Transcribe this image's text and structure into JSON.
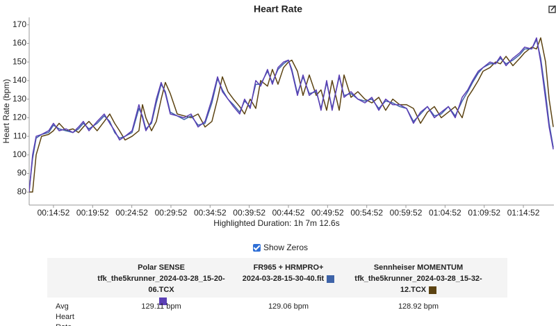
{
  "chart_data": {
    "type": "line",
    "title": "Heart Rate",
    "ylabel": "Heart Rate (bpm)",
    "xlabel": "Highlighted Duration: 1h 7m 12.6s",
    "x": [
      706,
      732,
      759,
      801,
      855,
      892,
      935,
      988,
      1041,
      1084,
      1121,
      1164,
      1227,
      1281,
      1323,
      1361,
      1398,
      1440,
      1494,
      1547,
      1574,
      1600,
      1643,
      1680,
      1717,
      1749,
      1787,
      1840,
      1893,
      1946,
      2000,
      2053,
      2106,
      2149,
      2186,
      2229,
      2271,
      2319,
      2356,
      2399,
      2442,
      2479,
      2532,
      2569,
      2612,
      2655,
      2692,
      2718,
      2761,
      2804,
      2852,
      2905,
      2942,
      2985,
      3027,
      3081,
      3118,
      3171,
      3224,
      3278,
      3331,
      3384,
      3437,
      3491,
      3544,
      3597,
      3650,
      3704,
      3757,
      3810,
      3863,
      3917,
      3970,
      4023,
      4066,
      4103,
      4146,
      4183,
      4236,
      4279,
      4316,
      4359,
      4412,
      4465,
      4502,
      4556,
      4593,
      4625,
      4662,
      4689,
      4721
    ],
    "series": [
      {
        "name": "Polar SENSE",
        "color": "#5b3fb5",
        "values": [
          80,
          100,
          110,
          111,
          113,
          117,
          113,
          114,
          112,
          115,
          118,
          113,
          118,
          122,
          117,
          113,
          108,
          110,
          113,
          127,
          120,
          113,
          118,
          130,
          139,
          133,
          122,
          121,
          120,
          122,
          115,
          118,
          130,
          142,
          134,
          130,
          126,
          122,
          130,
          125,
          140,
          137,
          146,
          138,
          147,
          150,
          151,
          145,
          132,
          143,
          132,
          135,
          124,
          140,
          124,
          143,
          131,
          134,
          130,
          128,
          131,
          124,
          130,
          127,
          127,
          125,
          117,
          123,
          126,
          120,
          123,
          126,
          120,
          131,
          135,
          140,
          145,
          147,
          150,
          149,
          153,
          148,
          152,
          155,
          158,
          157,
          163,
          150,
          130,
          115,
          103
        ]
      },
      {
        "name": "FR965 + HRMPRO+",
        "color": "#3e63a8",
        "values": [
          81,
          98,
          109,
          111,
          112,
          116,
          114,
          113,
          112,
          114,
          117,
          114,
          117,
          121,
          118,
          112,
          109,
          110,
          112,
          125,
          121,
          114,
          117,
          128,
          138,
          134,
          123,
          121,
          119,
          121,
          116,
          117,
          128,
          141,
          135,
          130,
          127,
          123,
          129,
          126,
          138,
          138,
          145,
          139,
          146,
          149,
          151,
          146,
          133,
          142,
          133,
          134,
          125,
          139,
          125,
          142,
          132,
          133,
          130,
          129,
          130,
          125,
          129,
          128,
          126,
          125,
          118,
          122,
          126,
          121,
          122,
          126,
          121,
          129,
          134,
          139,
          144,
          147,
          149,
          149,
          152,
          149,
          151,
          154,
          157,
          157,
          162,
          152,
          133,
          117,
          104
        ]
      },
      {
        "name": "Sennheiser MOMENTUM",
        "color": "#5c4312",
        "values": [
          80,
          80,
          100,
          110,
          111,
          113,
          117,
          113,
          114,
          112,
          115,
          118,
          113,
          118,
          122,
          117,
          113,
          108,
          110,
          113,
          127,
          120,
          113,
          118,
          130,
          139,
          133,
          122,
          121,
          120,
          122,
          115,
          118,
          130,
          142,
          134,
          130,
          126,
          122,
          130,
          125,
          140,
          137,
          146,
          138,
          147,
          150,
          151,
          145,
          132,
          143,
          132,
          135,
          124,
          140,
          124,
          143,
          131,
          134,
          130,
          128,
          131,
          124,
          130,
          127,
          127,
          125,
          117,
          123,
          126,
          120,
          123,
          126,
          120,
          131,
          135,
          140,
          145,
          147,
          150,
          149,
          153,
          148,
          152,
          155,
          158,
          157,
          163,
          150,
          130,
          115
        ]
      }
    ],
    "xlim": [
      706,
      4726
    ],
    "xticks": [
      {
        "value": 892,
        "label": "00:14:52"
      },
      {
        "value": 1192,
        "label": "00:19:52"
      },
      {
        "value": 1492,
        "label": "00:24:52"
      },
      {
        "value": 1792,
        "label": "00:29:52"
      },
      {
        "value": 2092,
        "label": "00:34:52"
      },
      {
        "value": 2392,
        "label": "00:39:52"
      },
      {
        "value": 2692,
        "label": "00:44:52"
      },
      {
        "value": 2992,
        "label": "00:49:52"
      },
      {
        "value": 3292,
        "label": "00:54:52"
      },
      {
        "value": 3592,
        "label": "00:59:52"
      },
      {
        "value": 3892,
        "label": "01:04:52"
      },
      {
        "value": 4192,
        "label": "01:09:52"
      },
      {
        "value": 4492,
        "label": "01:14:52"
      }
    ],
    "ylim": [
      73,
      174
    ],
    "yticks": [
      80,
      90,
      100,
      110,
      120,
      130,
      140,
      150,
      160,
      170
    ]
  },
  "controls": {
    "show_zeros": "Show Zeros"
  },
  "summary_table": {
    "files": [
      "tfk_the5krunner_2024-03-28_15-20-06.TCX",
      "2024-03-28-15-30-40.fit",
      "tfk_the5krunner_2024-03-28_15-32-12.TCX"
    ],
    "rows": [
      {
        "label": "Avg Heart Rate",
        "values": [
          "129.11 bpm",
          "129.06 bpm",
          "128.92 bpm"
        ]
      }
    ]
  }
}
